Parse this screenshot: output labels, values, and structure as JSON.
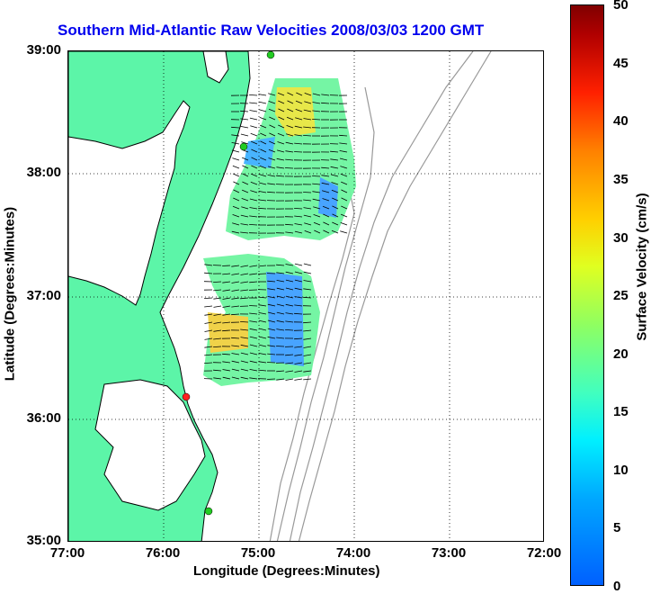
{
  "title": "Southern Mid-Atlantic Raw Velocities 2008/03/03 1200 GMT",
  "x_axis": {
    "label": "Longitude (Degrees:Minutes)",
    "ticks": [
      "77:00",
      "76:00",
      "75:00",
      "74:00",
      "73:00",
      "72:00"
    ]
  },
  "y_axis": {
    "label": "Latitude (Degrees:Minutes)",
    "ticks": [
      "39:00",
      "38:00",
      "37:00",
      "36:00",
      "35:00"
    ]
  },
  "colorbar": {
    "label": "Surface Velocity (cm/s)",
    "ticks": [
      "50",
      "45",
      "40",
      "35",
      "30",
      "25",
      "20",
      "15",
      "10",
      "5",
      "0"
    ]
  },
  "colors": {
    "title": "#0000ee",
    "land": "#5cf5a8",
    "bathymetry": "#999999"
  },
  "markers": [
    {
      "name": "station-north",
      "color": "green"
    },
    {
      "name": "station-mid",
      "color": "green"
    },
    {
      "name": "station-south",
      "color": "red"
    },
    {
      "name": "station-hatteras",
      "color": "green"
    }
  ]
}
